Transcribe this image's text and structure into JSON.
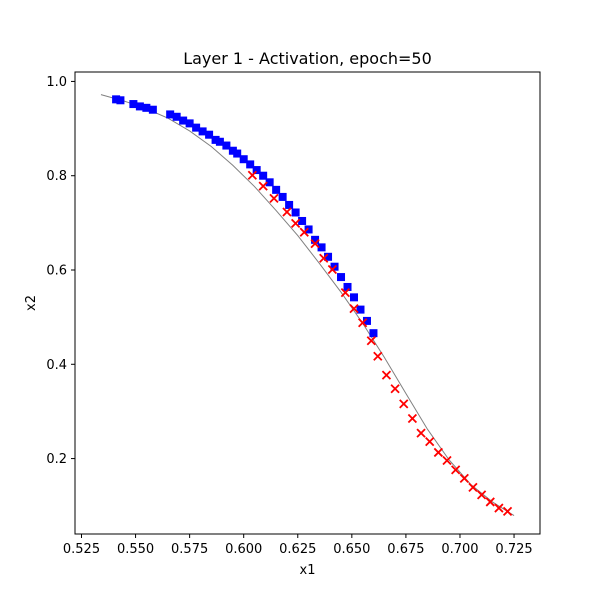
{
  "chart_data": {
    "type": "scatter",
    "title": "Layer 1 - Activation, epoch=50",
    "xlabel": "x1",
    "ylabel": "x2",
    "xlim": [
      0.522,
      0.737
    ],
    "ylim": [
      0.04,
      1.02
    ],
    "grid": false,
    "xticks": [
      "0.525",
      "0.550",
      "0.575",
      "0.600",
      "0.625",
      "0.650",
      "0.675",
      "0.700",
      "0.725"
    ],
    "xtick_values": [
      0.525,
      0.55,
      0.575,
      0.6,
      0.625,
      0.65,
      0.675,
      0.7,
      0.725
    ],
    "yticks": [
      "0.2",
      "0.4",
      "0.6",
      "0.8",
      "1.0"
    ],
    "ytick_values": [
      0.2,
      0.4,
      0.6,
      0.8,
      1.0
    ],
    "curve": {
      "color": "#808080",
      "x": [
        0.534,
        0.545,
        0.555,
        0.565,
        0.575,
        0.585,
        0.595,
        0.605,
        0.615,
        0.625,
        0.635,
        0.645,
        0.655,
        0.665,
        0.675,
        0.685,
        0.695,
        0.705,
        0.715,
        0.725
      ],
      "y": [
        0.972,
        0.958,
        0.942,
        0.922,
        0.895,
        0.862,
        0.822,
        0.777,
        0.726,
        0.673,
        0.614,
        0.553,
        0.487,
        0.415,
        0.338,
        0.262,
        0.197,
        0.145,
        0.108,
        0.079
      ]
    },
    "series": [
      {
        "marker": "square",
        "color": "#0000ff",
        "x": [
          0.541,
          0.543,
          0.549,
          0.552,
          0.555,
          0.558,
          0.566,
          0.569,
          0.572,
          0.575,
          0.578,
          0.581,
          0.584,
          0.587,
          0.589,
          0.592,
          0.595,
          0.597,
          0.6,
          0.603,
          0.606,
          0.609,
          0.612,
          0.615,
          0.618,
          0.621,
          0.624,
          0.627,
          0.63,
          0.633,
          0.636,
          0.639,
          0.642,
          0.645,
          0.648,
          0.651,
          0.654,
          0.657,
          0.66
        ],
        "y": [
          0.962,
          0.96,
          0.952,
          0.947,
          0.944,
          0.94,
          0.93,
          0.925,
          0.917,
          0.911,
          0.902,
          0.894,
          0.887,
          0.876,
          0.872,
          0.864,
          0.853,
          0.847,
          0.835,
          0.824,
          0.812,
          0.8,
          0.786,
          0.77,
          0.755,
          0.738,
          0.722,
          0.704,
          0.686,
          0.664,
          0.648,
          0.628,
          0.607,
          0.585,
          0.564,
          0.542,
          0.516,
          0.492,
          0.466
        ]
      },
      {
        "marker": "x",
        "color": "#ff0000",
        "x": [
          0.604,
          0.609,
          0.614,
          0.62,
          0.624,
          0.628,
          0.633,
          0.637,
          0.641,
          0.647,
          0.651,
          0.655,
          0.659,
          0.662,
          0.666,
          0.67,
          0.674,
          0.678,
          0.682,
          0.686,
          0.69,
          0.694,
          0.698,
          0.702,
          0.706,
          0.71,
          0.714,
          0.718,
          0.722
        ],
        "y": [
          0.801,
          0.778,
          0.752,
          0.723,
          0.699,
          0.68,
          0.656,
          0.625,
          0.601,
          0.552,
          0.518,
          0.488,
          0.45,
          0.417,
          0.377,
          0.348,
          0.316,
          0.285,
          0.254,
          0.236,
          0.213,
          0.196,
          0.176,
          0.158,
          0.139,
          0.123,
          0.108,
          0.095,
          0.088
        ]
      }
    ]
  }
}
